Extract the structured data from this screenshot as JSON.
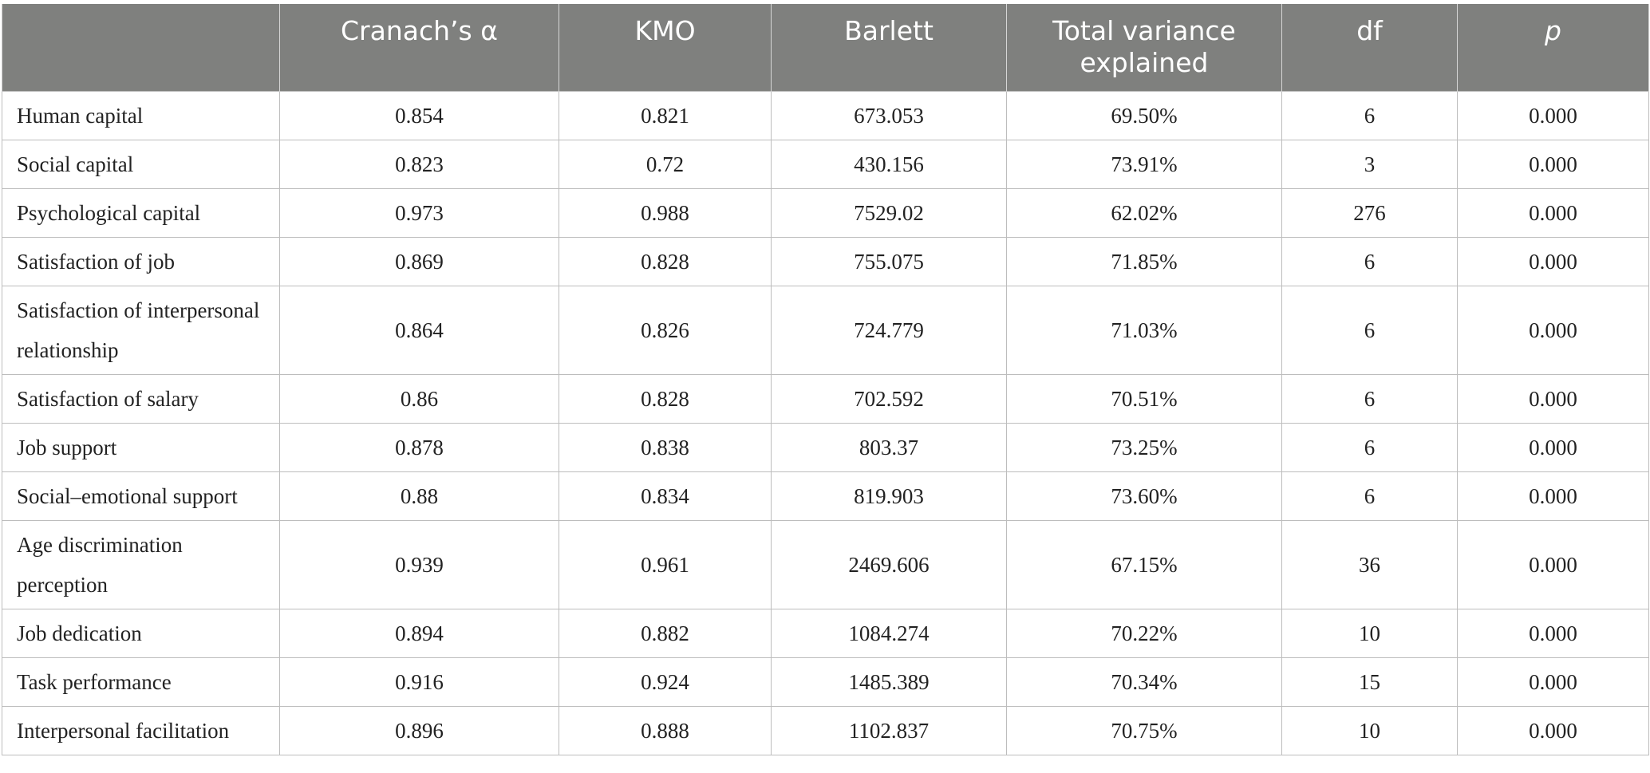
{
  "table": {
    "headers": [
      "",
      "Cranach’s α",
      "KMO",
      "Barlett",
      "Total variance explained",
      "df",
      "p"
    ],
    "rows": [
      {
        "label": "Human capital",
        "alpha": "0.854",
        "kmo": "0.821",
        "barlett": "673.053",
        "variance": "69.50%",
        "df": "6",
        "p": "0.000"
      },
      {
        "label": "Social capital",
        "alpha": "0.823",
        "kmo": "0.72",
        "barlett": "430.156",
        "variance": "73.91%",
        "df": "3",
        "p": "0.000"
      },
      {
        "label": "Psychological capital",
        "alpha": "0.973",
        "kmo": "0.988",
        "barlett": "7529.02",
        "variance": "62.02%",
        "df": "276",
        "p": "0.000"
      },
      {
        "label": "Satisfaction of job",
        "alpha": "0.869",
        "kmo": "0.828",
        "barlett": "755.075",
        "variance": "71.85%",
        "df": "6",
        "p": "0.000"
      },
      {
        "label": "Satisfaction of interpersonal relationship",
        "alpha": "0.864",
        "kmo": "0.826",
        "barlett": "724.779",
        "variance": "71.03%",
        "df": "6",
        "p": "0.000"
      },
      {
        "label": "Satisfaction of salary",
        "alpha": "0.86",
        "kmo": "0.828",
        "barlett": "702.592",
        "variance": "70.51%",
        "df": "6",
        "p": "0.000"
      },
      {
        "label": "Job support",
        "alpha": "0.878",
        "kmo": "0.838",
        "barlett": "803.37",
        "variance": "73.25%",
        "df": "6",
        "p": "0.000"
      },
      {
        "label": "Social–emotional support",
        "alpha": "0.88",
        "kmo": "0.834",
        "barlett": "819.903",
        "variance": "73.60%",
        "df": "6",
        "p": "0.000"
      },
      {
        "label": "Age discrimination perception",
        "alpha": "0.939",
        "kmo": "0.961",
        "barlett": "2469.606",
        "variance": "67.15%",
        "df": "36",
        "p": "0.000"
      },
      {
        "label": "Job dedication",
        "alpha": "0.894",
        "kmo": "0.882",
        "barlett": "1084.274",
        "variance": "70.22%",
        "df": "10",
        "p": "0.000"
      },
      {
        "label": "Task performance",
        "alpha": "0.916",
        "kmo": "0.924",
        "barlett": "1485.389",
        "variance": "70.34%",
        "df": "15",
        "p": "0.000"
      },
      {
        "label": "Interpersonal facilitation",
        "alpha": "0.896",
        "kmo": "0.888",
        "barlett": "1102.837",
        "variance": "70.75%",
        "df": "10",
        "p": "0.000"
      }
    ]
  },
  "colors": {
    "header_bg": "#7f807e",
    "header_text": "#ffffff",
    "grid": "#bdbdbd"
  }
}
